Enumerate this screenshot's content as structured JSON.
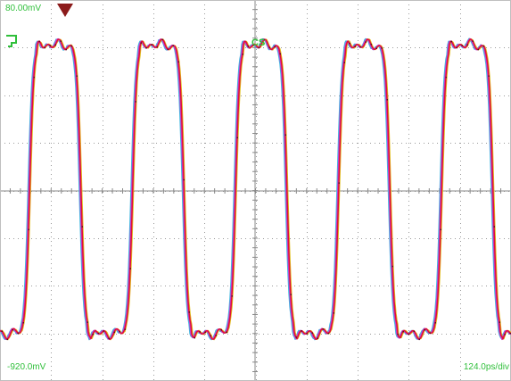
{
  "readouts": {
    "top_scale": "80.00mV",
    "bottom_scale": "-920.0mV",
    "timebase": "124.0ps/div",
    "measurement_marker": "CS"
  },
  "colors": {
    "background": "#ffffff",
    "grid_dots": "#9a9a9a",
    "axis_line": "#8a8a8a",
    "label_text": "#2fbf3a",
    "trigger_marker": "#8b1a1a",
    "trace_red": "#e0103a",
    "trace_magenta": "#c23cd0",
    "trace_yellow": "#e0c020",
    "trace_cyan": "#40b8e0"
  },
  "icons": {
    "trigger_marker": "trigger-arrow-icon",
    "ground_marker": "ground-level-icon"
  },
  "waveform": {
    "type": "square wave eye overlay",
    "cycles_visible": 5,
    "traces": [
      "red",
      "magenta",
      "yellow",
      "cyan"
    ]
  }
}
